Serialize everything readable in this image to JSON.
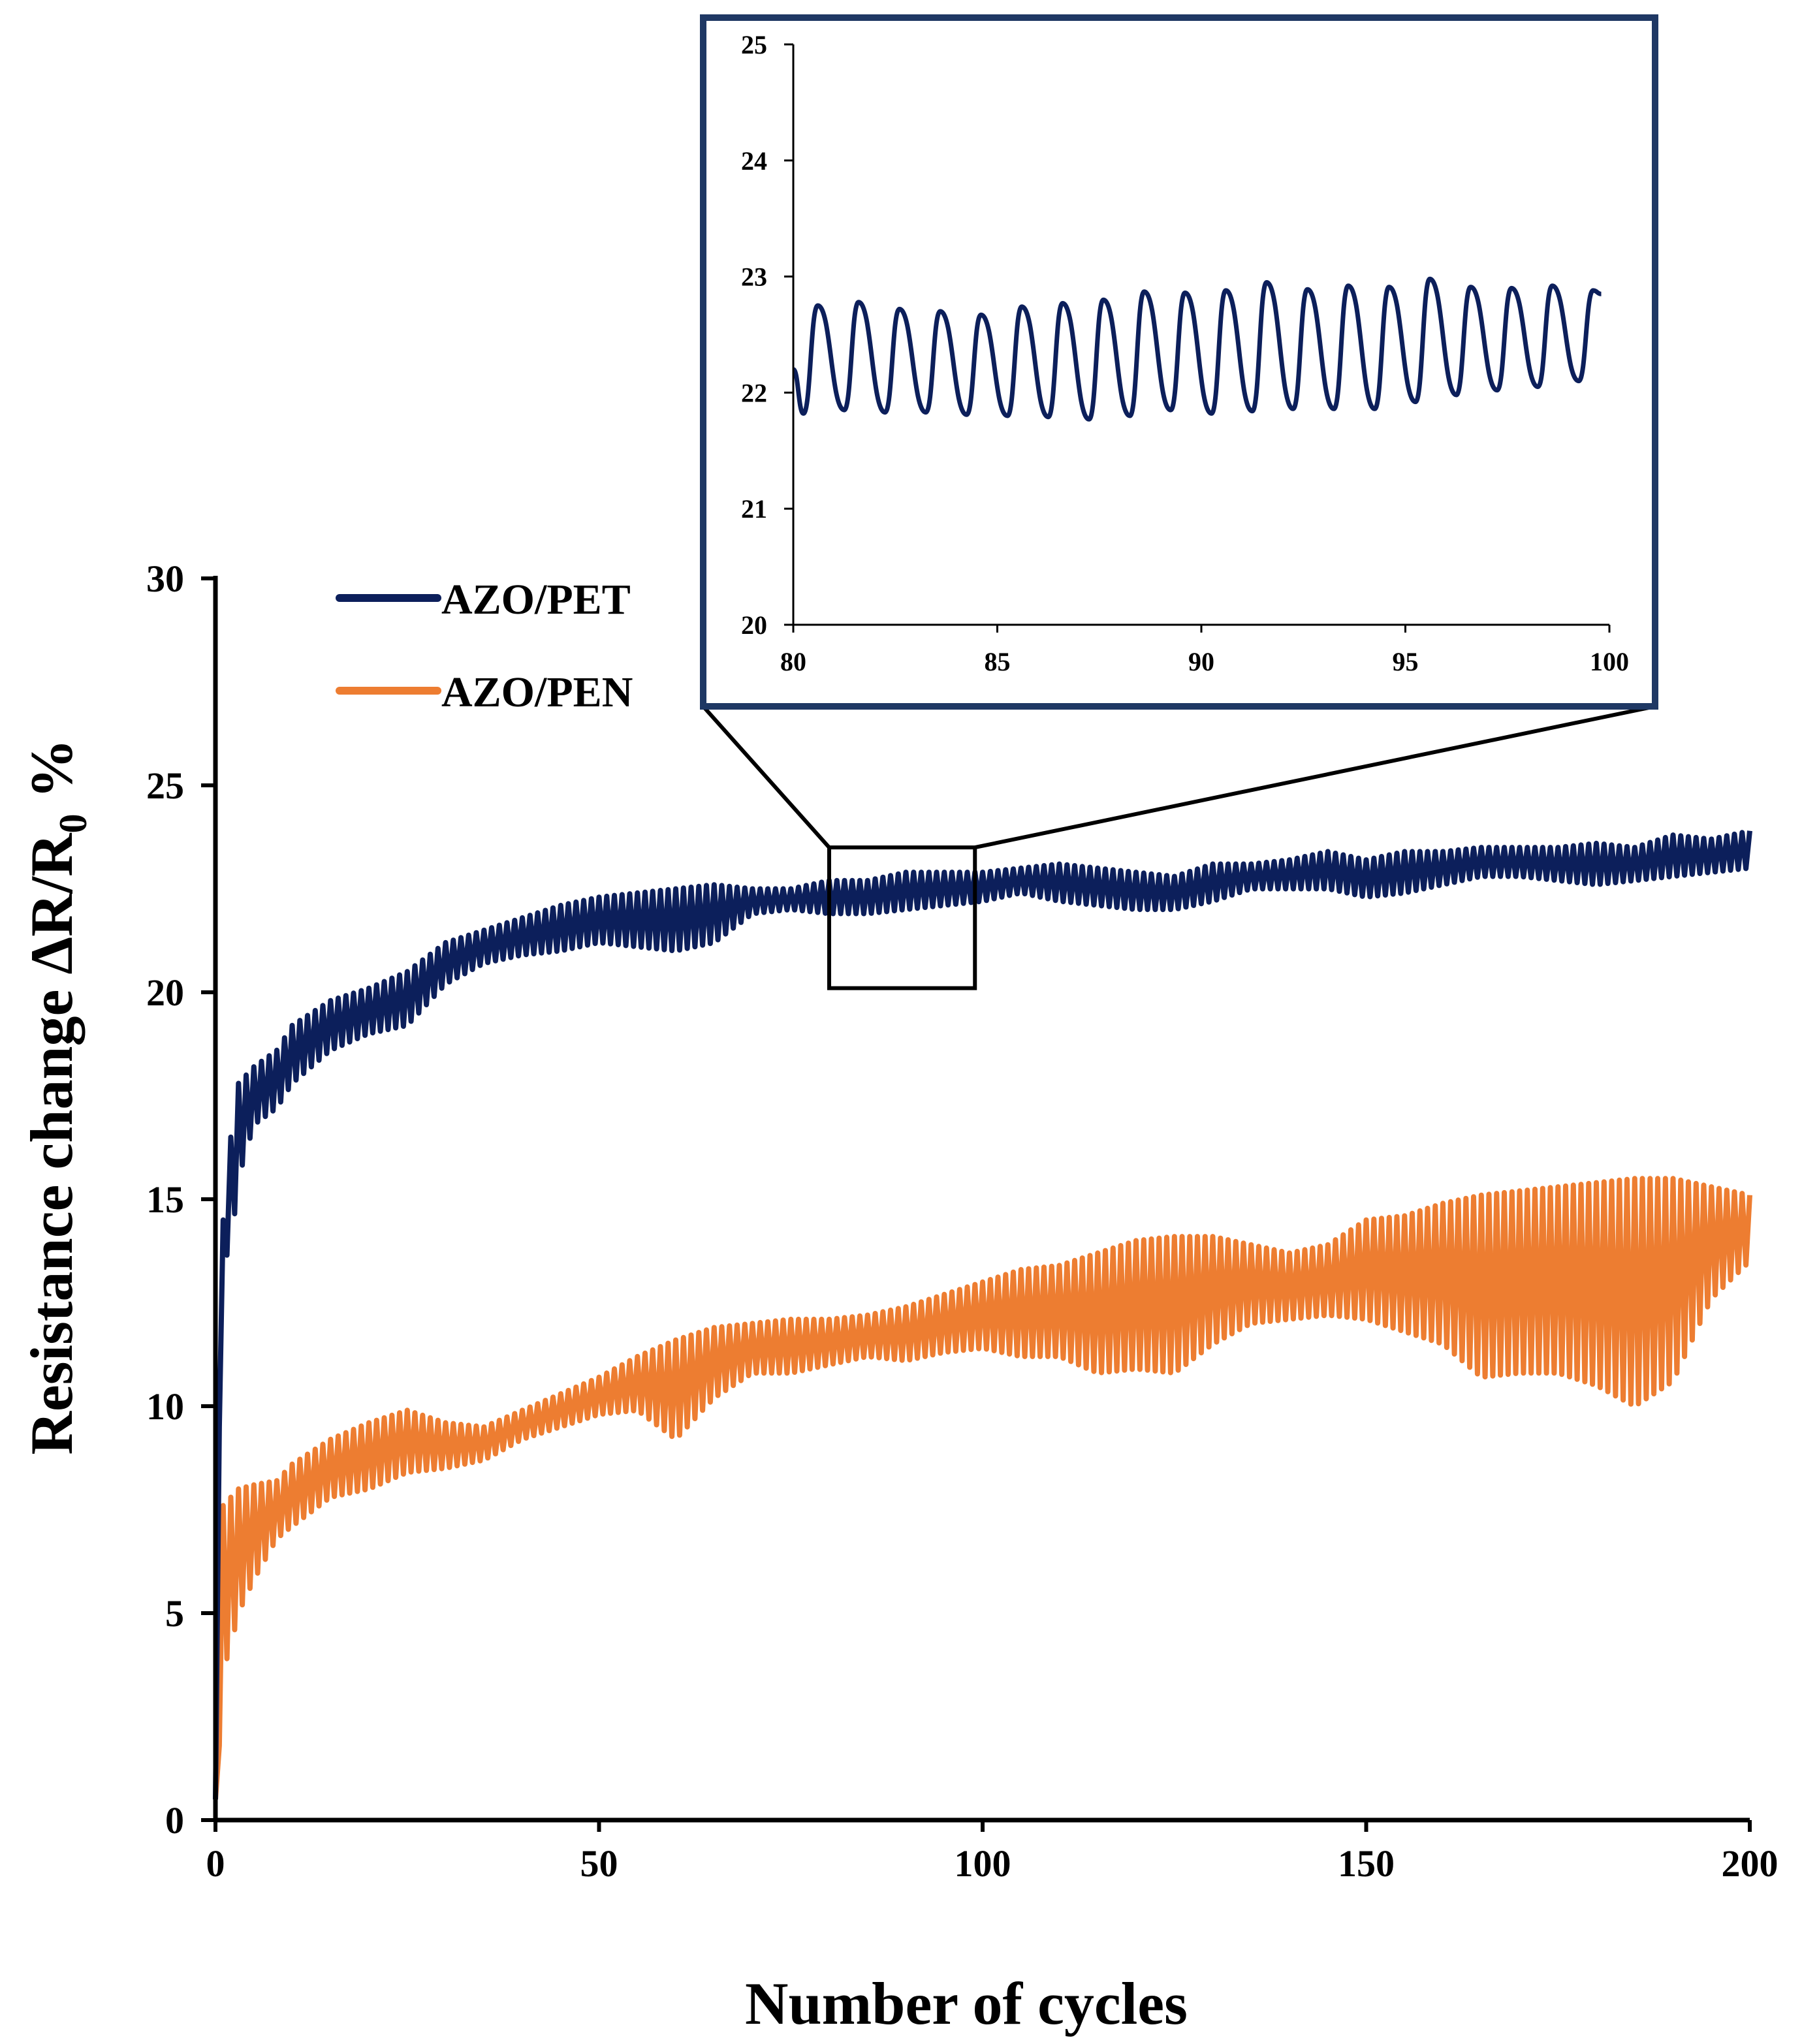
{
  "chart_data": {
    "type": "line",
    "main": {
      "xlabel": "Number of cycles",
      "ylabel": "Resistance change ΔR/R",
      "ylabel_sub": "0",
      "ylabel_suffix": "%",
      "xlim": [
        0,
        200
      ],
      "ylim": [
        0,
        30
      ],
      "xticks": [
        "0",
        "50",
        "100",
        "150",
        "200"
      ],
      "yticks": [
        "0",
        "5",
        "10",
        "15",
        "20",
        "25",
        "30"
      ],
      "legend": {
        "position": "top-left",
        "entries": [
          "AZO/PET",
          "AZO/PEN"
        ]
      },
      "series": [
        {
          "name": "AZO/PET",
          "color": "#0c1f5b",
          "envelope": {
            "x": [
              0,
              0.5,
              1,
              2,
              3,
              5,
              8,
              10,
              15,
              20,
              25,
              30,
              35,
              40,
              45,
              50,
              55,
              60,
              65,
              70,
              75,
              80,
              85,
              90,
              95,
              100,
              105,
              110,
              115,
              120,
              125,
              130,
              135,
              140,
              145,
              150,
              155,
              160,
              165,
              170,
              175,
              180,
              185,
              190,
              195,
              200
            ],
            "low": [
              0,
              9.5,
              13.5,
              13.8,
              15.5,
              16.8,
              17.2,
              17.8,
              18.6,
              19.0,
              19.2,
              20.2,
              20.7,
              20.9,
              21.0,
              21.2,
              21.1,
              21.0,
              21.2,
              21.9,
              22.0,
              21.9,
              21.9,
              22.0,
              22.1,
              22.2,
              22.4,
              22.2,
              22.1,
              22.0,
              22.0,
              22.2,
              22.5,
              22.5,
              22.5,
              22.3,
              22.4,
              22.6,
              22.8,
              22.8,
              22.7,
              22.6,
              22.7,
              22.8,
              22.9,
              23.0
            ],
            "high": [
              0.5,
              10.5,
              14.5,
              16.5,
              17.8,
              18.2,
              18.6,
              19.2,
              19.8,
              20.1,
              20.5,
              21.2,
              21.5,
              21.8,
              22.1,
              22.3,
              22.4,
              22.5,
              22.6,
              22.5,
              22.5,
              22.7,
              22.7,
              22.9,
              22.9,
              22.9,
              23.0,
              23.1,
              23.0,
              22.9,
              22.8,
              23.1,
              23.1,
              23.2,
              23.4,
              23.2,
              23.4,
              23.4,
              23.5,
              23.5,
              23.5,
              23.6,
              23.5,
              23.8,
              23.7,
              23.9
            ]
          }
        },
        {
          "name": "AZO/PEN",
          "color": "#ed7d31",
          "envelope": {
            "x": [
              0,
              0.5,
              1,
              2,
              3,
              5,
              8,
              10,
              15,
              20,
              25,
              30,
              35,
              40,
              45,
              50,
              55,
              60,
              65,
              70,
              75,
              80,
              85,
              90,
              95,
              100,
              105,
              110,
              115,
              120,
              125,
              130,
              135,
              140,
              145,
              150,
              155,
              160,
              165,
              170,
              175,
              180,
              185,
              190,
              195,
              200
            ],
            "low": [
              0,
              1.8,
              3.6,
              4.2,
              5.0,
              5.8,
              6.8,
              7.1,
              7.8,
              8.0,
              8.4,
              8.5,
              8.7,
              9.2,
              9.5,
              9.8,
              9.9,
              9.2,
              10.2,
              10.8,
              10.8,
              11.0,
              11.2,
              11.1,
              11.3,
              11.4,
              11.2,
              11.2,
              10.8,
              10.9,
              10.8,
              11.5,
              12.0,
              12.1,
              12.2,
              12.1,
              11.8,
              11.5,
              10.7,
              10.8,
              10.8,
              10.5,
              10.0,
              10.6,
              12.6,
              13.5
            ],
            "high": [
              0.5,
              7.0,
              7.6,
              7.8,
              8.0,
              8.1,
              8.2,
              8.6,
              9.2,
              9.6,
              9.9,
              9.6,
              9.5,
              9.9,
              10.3,
              10.7,
              11.2,
              11.6,
              11.9,
              12.0,
              12.1,
              12.1,
              12.2,
              12.4,
              12.7,
              13.0,
              13.3,
              13.4,
              13.7,
              14.0,
              14.1,
              14.1,
              13.9,
              13.7,
              13.9,
              14.5,
              14.6,
              14.9,
              15.1,
              15.2,
              15.3,
              15.4,
              15.5,
              15.5,
              15.3,
              15.1
            ]
          }
        }
      ],
      "zoom_box": {
        "x": [
          80,
          99
        ],
        "y": [
          20.1,
          23.5
        ]
      }
    },
    "inset": {
      "xlim": [
        80,
        100
      ],
      "ylim": [
        20,
        25
      ],
      "xticks": [
        "80",
        "85",
        "90",
        "95",
        "100"
      ],
      "yticks": [
        "20",
        "21",
        "22",
        "23",
        "24",
        "25"
      ],
      "series": [
        {
          "name": "AZO/PET",
          "color": "#0c1f5b",
          "x_start": 80,
          "period": 1,
          "peaks": [
            22.75,
            22.78,
            22.72,
            22.7,
            22.67,
            22.74,
            22.77,
            22.8,
            22.87,
            22.86,
            22.88,
            22.95,
            22.89,
            22.92,
            22.91,
            22.98,
            22.91,
            22.9,
            22.92,
            22.88
          ],
          "troughs": [
            21.82,
            21.85,
            21.83,
            21.83,
            21.81,
            21.8,
            21.79,
            21.77,
            21.8,
            21.85,
            21.82,
            21.84,
            21.86,
            21.86,
            21.86,
            21.92,
            21.98,
            22.02,
            22.05,
            22.1
          ]
        }
      ]
    }
  }
}
